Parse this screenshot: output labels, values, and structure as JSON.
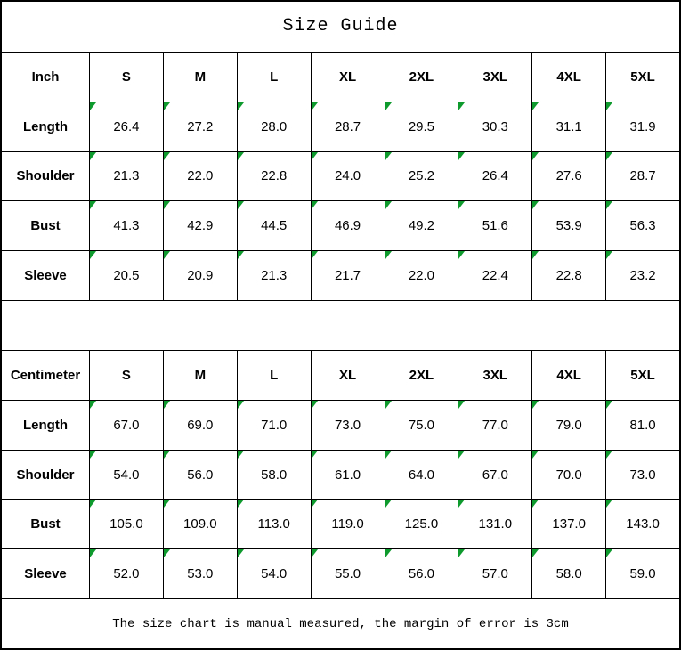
{
  "title": "Size Guide",
  "footer_note": "The size chart is manual measured, the margin of error is 3cm",
  "colors": {
    "border": "#000000",
    "background": "#ffffff",
    "flag_triangle": "#0f9a2e"
  },
  "icons": {
    "cell_flag": "green corner triangle (number-stored-as-text indicator)"
  },
  "tables": [
    {
      "unit_label": "Inch",
      "sizes": [
        "S",
        "M",
        "L",
        "XL",
        "2XL",
        "3XL",
        "4XL",
        "5XL"
      ],
      "rows": [
        {
          "label": "Length",
          "values": [
            "26.4",
            "27.2",
            "28.0",
            "28.7",
            "29.5",
            "30.3",
            "31.1",
            "31.9"
          ]
        },
        {
          "label": "Shoulder",
          "values": [
            "21.3",
            "22.0",
            "22.8",
            "24.0",
            "25.2",
            "26.4",
            "27.6",
            "28.7"
          ]
        },
        {
          "label": "Bust",
          "values": [
            "41.3",
            "42.9",
            "44.5",
            "46.9",
            "49.2",
            "51.6",
            "53.9",
            "56.3"
          ]
        },
        {
          "label": "Sleeve",
          "values": [
            "20.5",
            "20.9",
            "21.3",
            "21.7",
            "22.0",
            "22.4",
            "22.8",
            "23.2"
          ]
        }
      ]
    },
    {
      "unit_label": "Centimeter",
      "sizes": [
        "S",
        "M",
        "L",
        "XL",
        "2XL",
        "3XL",
        "4XL",
        "5XL"
      ],
      "rows": [
        {
          "label": "Length",
          "values": [
            "67.0",
            "69.0",
            "71.0",
            "73.0",
            "75.0",
            "77.0",
            "79.0",
            "81.0"
          ]
        },
        {
          "label": "Shoulder",
          "values": [
            "54.0",
            "56.0",
            "58.0",
            "61.0",
            "64.0",
            "67.0",
            "70.0",
            "73.0"
          ]
        },
        {
          "label": "Bust",
          "values": [
            "105.0",
            "109.0",
            "113.0",
            "119.0",
            "125.0",
            "131.0",
            "137.0",
            "143.0"
          ]
        },
        {
          "label": "Sleeve",
          "values": [
            "52.0",
            "53.0",
            "54.0",
            "55.0",
            "56.0",
            "57.0",
            "58.0",
            "59.0"
          ]
        }
      ]
    }
  ]
}
